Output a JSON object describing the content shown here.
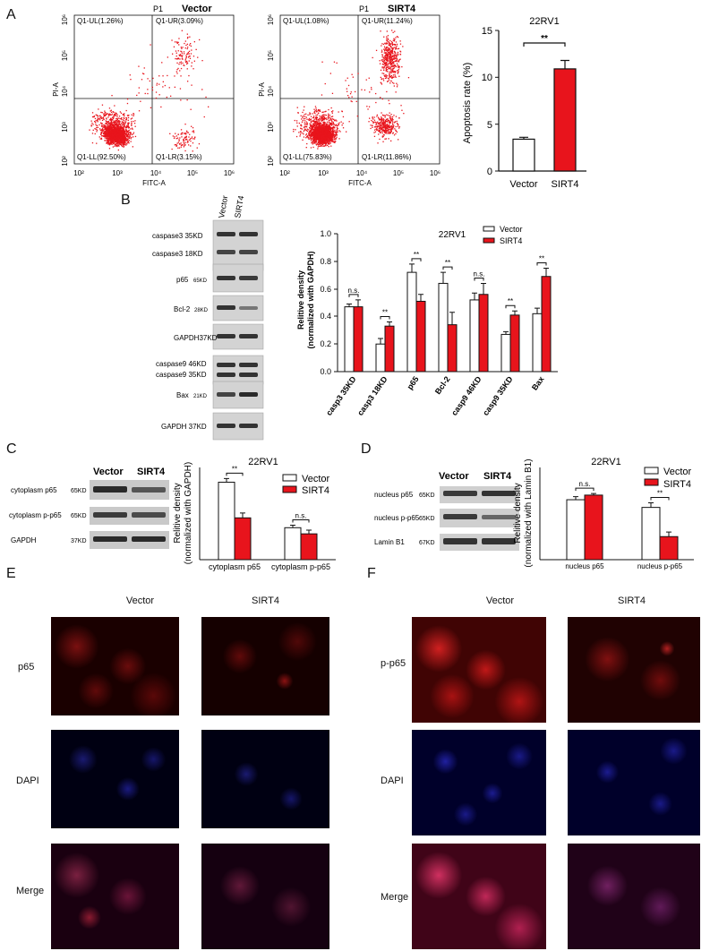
{
  "figure": {
    "panel_letters": {
      "A": "A",
      "B": "B",
      "C": "C",
      "D": "D",
      "E": "E",
      "F": "F"
    },
    "colors": {
      "vector": "#ffffff",
      "sirt4": "#e8141c",
      "dot": "#ee1c24",
      "stroke": "#111111"
    }
  },
  "panel_a": {
    "flow": [
      {
        "gate": "P1",
        "condition": "Vector",
        "xlabel": "FITC-A",
        "ylabel": "PI-A",
        "quadrants": {
          "ul": "Q1-UL(1.26%)",
          "ur": "Q1-UR(3.09%)",
          "ll": "Q1-LL(92.50%)",
          "lr": "Q1-LR(3.15%)"
        },
        "xticks": [
          "10²",
          "10³",
          "10⁴",
          "10⁵",
          "10⁶"
        ],
        "yticks": [
          "10²",
          "10³",
          "10⁴",
          "10⁵",
          "10⁶"
        ]
      },
      {
        "gate": "P1",
        "condition": "SIRT4",
        "xlabel": "FITC-A",
        "ylabel": "PI-A",
        "quadrants": {
          "ul": "Q1-UL(1.08%)",
          "ur": "Q1-UR(11.24%)",
          "ll": "Q1-LL(75.83%)",
          "lr": "Q1-LR(11.86%)"
        },
        "xticks": [
          "10²",
          "10³",
          "10⁴",
          "10⁵",
          "10⁶"
        ],
        "yticks": [
          "10²",
          "10³",
          "10⁴",
          "10⁵",
          "10⁶"
        ]
      }
    ],
    "bar": {
      "title": "22RV1",
      "ylabel": "Apoptosis rate (%)",
      "sig": "**",
      "yticks": [
        "0",
        "5",
        "10",
        "15"
      ],
      "categories": [
        "Vector",
        "SIRT4"
      ]
    }
  },
  "panel_b": {
    "lane_labels": [
      "Vector",
      "SIRT4"
    ],
    "blot_labels": [
      "caspase3 35KD",
      "caspase3 18KD",
      "p65",
      "65KD",
      "Bcl-2",
      "28KD",
      "GAPDH37KD",
      "caspase9 46KD",
      "caspase9 35KD",
      "Bax",
      "21KD",
      "GAPDH 37KD"
    ],
    "chart": {
      "title": "22RV1",
      "ylabel1": "Relitive density",
      "ylabel2": "(normalized with GAPDH)",
      "legend": [
        "Vector",
        "SIRT4"
      ],
      "yticks": [
        "0.0",
        "0.2",
        "0.4",
        "0.6",
        "0.8",
        "1.0"
      ],
      "categories": [
        "casp3 35KD",
        "casp3 18KD",
        "p65",
        "Bcl-2",
        "casp9 46KD",
        "casp9 35KD",
        "Bax"
      ],
      "sig": [
        "n.s.",
        "**",
        "**",
        "**",
        "n.s.",
        "**",
        "**"
      ]
    }
  },
  "panel_c": {
    "lane_labels": [
      "Vector",
      "SIRT4"
    ],
    "blot_labels": [
      "cytoplasm p65",
      "65KD",
      "cytoplasm p-p65",
      "65KD",
      "GAPDH",
      "37KD"
    ],
    "chart": {
      "title": "22RV1",
      "ylabel1": "Relitive density",
      "ylabel2": "(normalized with GAPDH)",
      "legend": [
        "Vector",
        "SIRT4"
      ],
      "categories": [
        "cytoplasm p65",
        "cytoplasm p-p65"
      ],
      "sig": [
        "**",
        "n.s."
      ]
    }
  },
  "panel_d": {
    "lane_labels": [
      "Vector",
      "SIRT4"
    ],
    "blot_labels": [
      "nucleus p65",
      "65KD",
      "nucleus p-p65",
      "65KD",
      "Lamin B1",
      "67KD"
    ],
    "chart": {
      "title": "22RV1",
      "ylabel1": "Relitive density",
      "ylabel2": "(normalized with Lamin B1)",
      "legend": [
        "Vector",
        "SIRT4"
      ],
      "categories": [
        "nucleus p65",
        "nucleus p-p65"
      ],
      "sig": [
        "n.s.",
        "**"
      ]
    }
  },
  "panel_e": {
    "columns": [
      "Vector",
      "SIRT4"
    ],
    "rows": [
      "p65",
      "DAPI",
      "Merge"
    ]
  },
  "panel_f": {
    "columns": [
      "Vector",
      "SIRT4"
    ],
    "rows": [
      "p-p65",
      "DAPI",
      "Merge"
    ]
  },
  "chart_data": [
    {
      "type": "bar",
      "title": "22RV1",
      "ylabel": "Apoptosis rate (%)",
      "ylim": [
        0,
        15
      ],
      "categories": [
        "Vector",
        "SIRT4"
      ],
      "values": [
        3.4,
        10.9
      ],
      "errors": [
        0.2,
        0.9
      ],
      "annotations": [
        "**"
      ]
    },
    {
      "type": "bar",
      "title": "22RV1",
      "ylabel": "Relitive density (normalized with GAPDH)",
      "ylim": [
        0,
        1.0
      ],
      "categories": [
        "casp3 35KD",
        "casp3 18KD",
        "p65",
        "Bcl-2",
        "casp9 46KD",
        "casp9 35KD",
        "Bax"
      ],
      "series": [
        {
          "name": "Vector",
          "values": [
            0.47,
            0.2,
            0.72,
            0.64,
            0.52,
            0.27,
            0.42
          ],
          "errors": [
            0.02,
            0.04,
            0.06,
            0.08,
            0.05,
            0.02,
            0.04
          ]
        },
        {
          "name": "SIRT4",
          "values": [
            0.47,
            0.33,
            0.51,
            0.34,
            0.56,
            0.41,
            0.69
          ],
          "errors": [
            0.05,
            0.03,
            0.05,
            0.09,
            0.08,
            0.03,
            0.06
          ]
        }
      ],
      "annotations": [
        "n.s.",
        "**",
        "**",
        "**",
        "n.s.",
        "**",
        "**"
      ]
    },
    {
      "type": "bar",
      "title": "22RV1",
      "ylabel": "Relitive density (normalized with GAPDH)",
      "ylim": [
        0,
        0.75
      ],
      "categories": [
        "cytoplasm p65",
        "cytoplasm p-p65"
      ],
      "series": [
        {
          "name": "Vector",
          "values": [
            0.63,
            0.26
          ],
          "errors": [
            0.03,
            0.02
          ]
        },
        {
          "name": "SIRT4",
          "values": [
            0.34,
            0.21
          ],
          "errors": [
            0.04,
            0.03
          ]
        }
      ],
      "annotations": [
        "**",
        "n.s."
      ]
    },
    {
      "type": "bar",
      "title": "22RV1",
      "ylabel": "Relitive density (normalized with Lamin B1)",
      "ylim": [
        0,
        0.6
      ],
      "categories": [
        "nucleus p65",
        "nucleus p-p65"
      ],
      "series": [
        {
          "name": "Vector",
          "values": [
            0.39,
            0.34
          ],
          "errors": [
            0.02,
            0.03
          ]
        },
        {
          "name": "SIRT4",
          "values": [
            0.42,
            0.15
          ],
          "errors": [
            0.01,
            0.03
          ]
        }
      ],
      "annotations": [
        "n.s.",
        "**"
      ]
    }
  ]
}
